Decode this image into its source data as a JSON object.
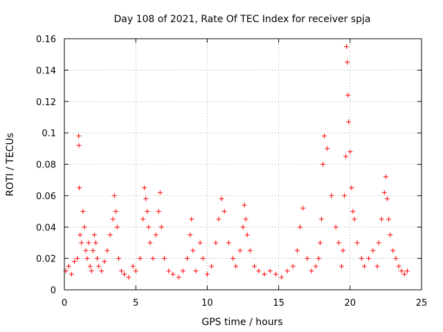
{
  "chart_data": {
    "type": "scatter",
    "title": "Day 108 of 2021, Rate Of TEC Index for receiver spja",
    "xlabel": "GPS time / hours",
    "ylabel": "ROTI / TECUs",
    "xlim": [
      0,
      25
    ],
    "ylim": [
      0,
      0.16
    ],
    "xticks": [
      0,
      5,
      10,
      15,
      20,
      25
    ],
    "xtick_labels": [
      "0",
      "5",
      "10",
      "15",
      "20",
      "25"
    ],
    "yticks": [
      0,
      0.02,
      0.04,
      0.06,
      0.08,
      0.1,
      0.12,
      0.14,
      0.16
    ],
    "ytick_labels": [
      "0",
      "0.02",
      "0.04",
      "0.06",
      "0.08",
      "0.1",
      "0.12",
      "0.14",
      "0.16"
    ],
    "grid": true,
    "marker": "+",
    "marker_color": "#ff0000",
    "series": [
      {
        "name": "ROTI",
        "x": [
          0.1,
          0.3,
          0.5,
          0.7,
          0.9,
          1.0,
          1.02,
          1.05,
          1.1,
          1.2,
          1.3,
          1.4,
          1.5,
          1.6,
          1.7,
          1.8,
          1.9,
          2.0,
          2.1,
          2.2,
          2.3,
          2.4,
          2.6,
          2.8,
          3.0,
          3.2,
          3.4,
          3.5,
          3.6,
          3.7,
          3.8,
          4.0,
          4.2,
          4.5,
          4.8,
          5.0,
          5.3,
          5.5,
          5.6,
          5.7,
          5.8,
          5.9,
          6.0,
          6.2,
          6.4,
          6.6,
          6.7,
          6.8,
          7.0,
          7.3,
          7.6,
          8.0,
          8.3,
          8.6,
          8.8,
          8.9,
          9.0,
          9.2,
          9.5,
          9.7,
          10.0,
          10.3,
          10.6,
          10.8,
          11.0,
          11.2,
          11.5,
          11.8,
          12.0,
          12.3,
          12.5,
          12.6,
          12.7,
          12.8,
          13.0,
          13.3,
          13.6,
          14.0,
          14.4,
          14.8,
          15.2,
          15.6,
          16.0,
          16.3,
          16.5,
          16.7,
          17.0,
          17.3,
          17.6,
          17.8,
          17.9,
          18.0,
          18.1,
          18.2,
          18.4,
          18.7,
          19.0,
          19.2,
          19.4,
          19.5,
          19.6,
          19.7,
          19.75,
          19.8,
          19.85,
          19.9,
          20.0,
          20.1,
          20.2,
          20.3,
          20.5,
          20.8,
          21.0,
          21.3,
          21.6,
          21.9,
          22.0,
          22.2,
          22.4,
          22.5,
          22.6,
          22.7,
          22.8,
          23.0,
          23.2,
          23.4,
          23.6,
          23.8,
          24.0
        ],
        "y": [
          0.012,
          0.015,
          0.01,
          0.018,
          0.02,
          0.098,
          0.092,
          0.065,
          0.035,
          0.03,
          0.05,
          0.04,
          0.025,
          0.02,
          0.03,
          0.015,
          0.012,
          0.025,
          0.035,
          0.03,
          0.02,
          0.015,
          0.012,
          0.018,
          0.025,
          0.035,
          0.045,
          0.06,
          0.05,
          0.04,
          0.02,
          0.012,
          0.01,
          0.008,
          0.015,
          0.012,
          0.02,
          0.045,
          0.065,
          0.058,
          0.05,
          0.04,
          0.03,
          0.02,
          0.035,
          0.05,
          0.062,
          0.04,
          0.02,
          0.012,
          0.01,
          0.008,
          0.012,
          0.02,
          0.035,
          0.045,
          0.025,
          0.012,
          0.03,
          0.02,
          0.01,
          0.015,
          0.03,
          0.045,
          0.058,
          0.05,
          0.03,
          0.02,
          0.015,
          0.025,
          0.04,
          0.054,
          0.045,
          0.035,
          0.025,
          0.015,
          0.012,
          0.01,
          0.012,
          0.01,
          0.008,
          0.012,
          0.015,
          0.025,
          0.04,
          0.052,
          0.02,
          0.012,
          0.015,
          0.02,
          0.03,
          0.045,
          0.08,
          0.098,
          0.09,
          0.06,
          0.04,
          0.03,
          0.015,
          0.025,
          0.06,
          0.085,
          0.155,
          0.145,
          0.124,
          0.107,
          0.088,
          0.065,
          0.05,
          0.045,
          0.03,
          0.02,
          0.015,
          0.02,
          0.025,
          0.015,
          0.03,
          0.045,
          0.062,
          0.072,
          0.058,
          0.045,
          0.035,
          0.025,
          0.02,
          0.015,
          0.012,
          0.01,
          0.012
        ]
      }
    ]
  }
}
